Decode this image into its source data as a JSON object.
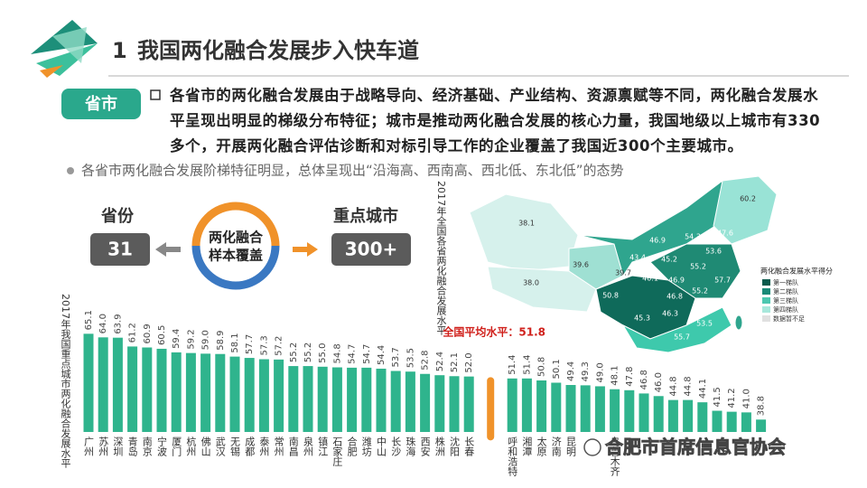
{
  "header": {
    "number": "1",
    "title": "我国两化融合发展步入快车道"
  },
  "tag": "省市",
  "intro": "各省市的两化融合发展由于战略导向、经济基础、产业结构、资源禀赋等不同，两化融合发展水平呈现出明显的梯级分布特征；城市是推动两化融合发展的核心力量，我国地级以上城市有330多个，开展两化融合评估诊断和对标引导工作的企业覆盖了我国近300个主要城市。",
  "note": "各省市两化融合发展阶梯特征明显，总体呈现出“沿海高、西南高、西北低、东北低”的态势",
  "coverage": {
    "left_label": "省份",
    "left_value": "31",
    "center": [
      "两化融合",
      "样本覆盖"
    ],
    "right_label": "重点城市",
    "right_value": "300+"
  },
  "map": {
    "title": "2017年全国各省两化融合发展水平",
    "labels": [
      "38.1",
      "38.0",
      "39.6",
      "39.7",
      "43.4",
      "46.9",
      "60.2",
      "54.3",
      "47.6",
      "53.6",
      "45.2",
      "55.2",
      "46.1",
      "57.7",
      "50.8",
      "46.9",
      "55.2",
      "46.8",
      "53.8",
      "54.6",
      "45.3",
      "46.3",
      "53.5",
      "55.7",
      "41.8"
    ],
    "legend": {
      "title": "两化融合发展水平得分",
      "items": [
        "第一梯队",
        "第二梯队",
        "第三梯队",
        "第四梯队",
        "数据暂不足"
      ]
    }
  },
  "city_chart": {
    "type": "bar",
    "title": "2017年我国重点城市两化融合发展水平",
    "categories": [
      "广州",
      "苏州",
      "深圳",
      "青岛",
      "南京",
      "宁波",
      "厦门",
      "杭州",
      "佛山",
      "武汉",
      "无锡",
      "成都",
      "泰州",
      "常州",
      "南昌",
      "泉州",
      "镇江",
      "石家庄",
      "合肥",
      "潍坊",
      "中山",
      "长沙",
      "珠海",
      "西安",
      "株洲",
      "沈阳",
      "长春",
      "呼和浩特",
      "湘潭",
      "太原",
      "济南",
      "昆明",
      null,
      null,
      "乌鲁木齐",
      null,
      null,
      null,
      null,
      null,
      null,
      null,
      null,
      null,
      null
    ],
    "values": [
      65.1,
      64.0,
      63.9,
      61.2,
      60.9,
      60.5,
      59.4,
      59.2,
      59.0,
      58.9,
      58.1,
      57.7,
      57.3,
      57.2,
      55.2,
      55.2,
      55.0,
      54.8,
      54.7,
      54.7,
      54.4,
      53.7,
      53.5,
      52.8,
      52.4,
      52.1,
      52.0,
      51.4,
      51.4,
      50.8,
      50.1,
      49.4,
      49.3,
      49.0,
      48.1,
      47.8,
      46.8,
      46.0,
      44.8,
      44.8,
      44.1,
      41.5,
      41.2,
      41.0,
      38.8
    ],
    "value_labels": [
      "65.1",
      "64.0",
      "63.9",
      "61.2",
      "60.9",
      "60.5",
      "59.4",
      "59.2",
      "59.0",
      "58.9",
      "58.1",
      "57.7",
      "57.3",
      "57.2",
      "55.2",
      "55.2",
      "55.0",
      "54.8",
      "54.7",
      "54.7",
      "54.4",
      "53.7",
      "53.5",
      "52.8",
      "52.4",
      "52.1",
      "52.0",
      "51.4",
      "51.4",
      "50.8",
      "50.1",
      "49.4",
      "49.3",
      "49.0",
      "48.1",
      "47.8",
      "46.8",
      "46.0",
      "44.8",
      "44.8",
      "44.1",
      "41.5",
      "41.2",
      "41.0",
      "38.8"
    ],
    "ylim": [
      35,
      70
    ],
    "color": "#2fb48d",
    "average": 51.8,
    "average_label": "全国平均水平：51.8",
    "average_color": "#f0922a"
  },
  "watermark": "合肥市首席信息官协会"
}
